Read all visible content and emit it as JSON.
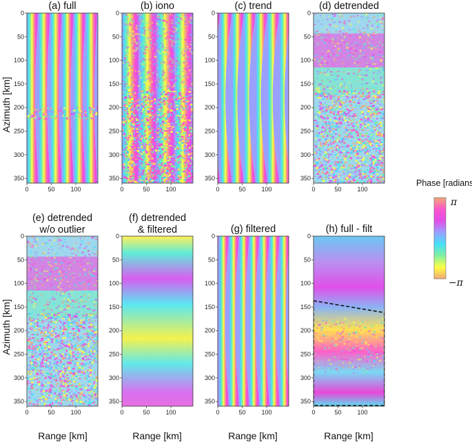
{
  "panels": [
    {
      "id": "a",
      "title": [
        "(a) full"
      ],
      "pattern": "full"
    },
    {
      "id": "b",
      "title": [
        "(b) iono"
      ],
      "pattern": "iono"
    },
    {
      "id": "c",
      "title": [
        "(c) trend"
      ],
      "pattern": "trend"
    },
    {
      "id": "d",
      "title": [
        "(d) detrended"
      ],
      "pattern": "detrended"
    },
    {
      "id": "e",
      "title": [
        "(e) detrended",
        "w/o outlier"
      ],
      "pattern": "detrended2"
    },
    {
      "id": "f",
      "title": [
        "(f) detrended",
        "& filtered"
      ],
      "pattern": "smooth"
    },
    {
      "id": "g",
      "title": [
        "(g) filtered"
      ],
      "pattern": "filtered"
    },
    {
      "id": "h",
      "title": [
        "(h) full - filt"
      ],
      "pattern": "residual"
    }
  ],
  "axes": {
    "x_ticks": [
      "0",
      "50",
      "100"
    ],
    "x_tick_values": [
      0,
      50,
      100
    ],
    "x_range": [
      0,
      145
    ],
    "y_ticks": [
      "0",
      "50",
      "100",
      "150",
      "200",
      "250",
      "300",
      "350"
    ],
    "y_tick_values": [
      0,
      50,
      100,
      150,
      200,
      250,
      300,
      350
    ],
    "y_range": [
      0,
      360
    ],
    "xlabel": "Range [km]",
    "ylabel": "Azimuth [km]"
  },
  "colorbar": {
    "label": "Phase [radians]",
    "max_label": "π",
    "min_label": "−π",
    "colors": [
      "#f0a878",
      "#ff55cc",
      "#e14de8",
      "#9aa0ff",
      "#45e0f8",
      "#80f0a0",
      "#ffff44",
      "#f0a878"
    ]
  }
}
